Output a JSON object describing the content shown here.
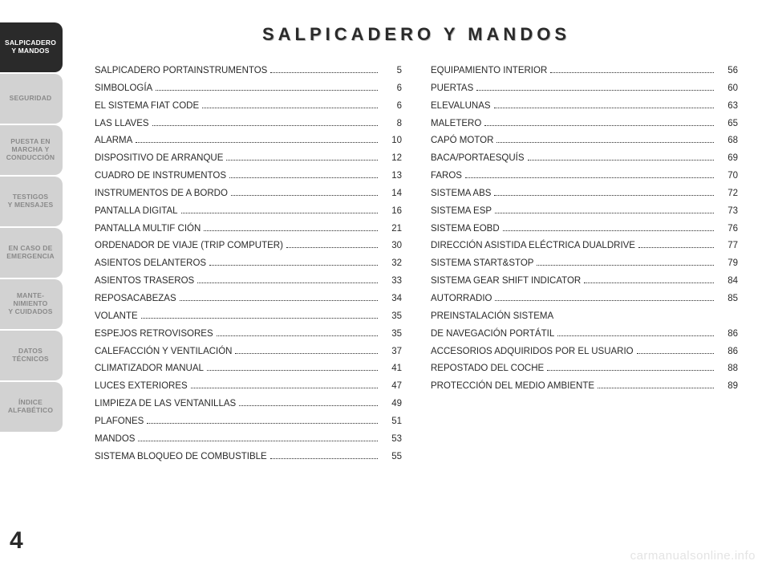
{
  "sidebar": {
    "active_bg": "#2a2a2a",
    "active_fg": "#ffffff",
    "inactive_bg": "#d2d2d2",
    "inactive_fg": "#8a8a8a",
    "tabs": [
      {
        "label": "SALPICADERO\nY MANDOS",
        "active": true
      },
      {
        "label": "SEGURIDAD",
        "active": false
      },
      {
        "label": "PUESTA EN\nMARCHA Y\nCONDUCCIÓN",
        "active": false
      },
      {
        "label": "TESTIGOS\nY MENSAJES",
        "active": false
      },
      {
        "label": "EN CASO DE\nEMERGENCIA",
        "active": false
      },
      {
        "label": "MANTE-\nNIMIENTO\nY CUIDADOS",
        "active": false
      },
      {
        "label": "DATOS\nTÉCNICOS",
        "active": false
      },
      {
        "label": "ÍNDICE\nALFABÉTICO",
        "active": false
      }
    ]
  },
  "page_number": "4",
  "title": "SALPICADERO Y MANDOS",
  "toc": {
    "left": [
      {
        "label": "SALPICADERO PORTAINSTRUMENTOS",
        "page": "5"
      },
      {
        "label": "SIMBOLOGÍA",
        "page": "6"
      },
      {
        "label": "EL SISTEMA FIAT CODE",
        "page": "6"
      },
      {
        "label": "LAS LLAVES",
        "page": "8"
      },
      {
        "label": "ALARMA",
        "page": "10"
      },
      {
        "label": "DISPOSITIVO DE ARRANQUE",
        "page": "12"
      },
      {
        "label": "CUADRO DE INSTRUMENTOS",
        "page": "13"
      },
      {
        "label": "INSTRUMENTOS DE A BORDO",
        "page": "14"
      },
      {
        "label": "PANTALLA DIGITAL",
        "page": "16"
      },
      {
        "label": "PANTALLA MULTIF CIÓN",
        "page": "21"
      },
      {
        "label": "ORDENADOR DE VIAJE (TRIP COMPUTER)",
        "page": "30"
      },
      {
        "label": "ASIENTOS DELANTEROS",
        "page": "32"
      },
      {
        "label": "ASIENTOS TRASEROS",
        "page": "33"
      },
      {
        "label": "REPOSACABEZAS",
        "page": "34"
      },
      {
        "label": "VOLANTE",
        "page": "35"
      },
      {
        "label": "ESPEJOS RETROVISORES",
        "page": "35"
      },
      {
        "label": "CALEFACCIÓN Y VENTILACIÓN",
        "page": "37"
      },
      {
        "label": "CLIMATIZADOR MANUAL",
        "page": "41"
      },
      {
        "label": "LUCES EXTERIORES",
        "page": "47"
      },
      {
        "label": "LIMPIEZA DE LAS VENTANILLAS",
        "page": "49"
      },
      {
        "label": "PLAFONES",
        "page": "51"
      },
      {
        "label": "MANDOS",
        "page": "53"
      },
      {
        "label": "SISTEMA BLOQUEO DE COMBUSTIBLE",
        "page": "55"
      }
    ],
    "right": [
      {
        "label": "EQUIPAMIENTO INTERIOR",
        "page": "56"
      },
      {
        "label": "PUERTAS",
        "page": "60"
      },
      {
        "label": "ELEVALUNAS",
        "page": "63"
      },
      {
        "label": "MALETERO",
        "page": "65"
      },
      {
        "label": "CAPÓ MOTOR",
        "page": "68"
      },
      {
        "label": "BACA/PORTAESQUÍS",
        "page": "69"
      },
      {
        "label": "FAROS",
        "page": "70"
      },
      {
        "label": "SISTEMA ABS",
        "page": "72"
      },
      {
        "label": "SISTEMA ESP",
        "page": "73"
      },
      {
        "label": "SISTEMA EOBD",
        "page": "76"
      },
      {
        "label": "DIRECCIÓN ASISTIDA ELÉCTRICA DUALDRIVE",
        "page": "77"
      },
      {
        "label": "SISTEMA START&STOP",
        "page": "79"
      },
      {
        "label": "SISTEMA GEAR SHIFT INDICATOR",
        "page": "84"
      },
      {
        "label": "AUTORRADIO",
        "page": "85"
      },
      {
        "label": "PREINSTALACIÓN SISTEMA\nDE NAVEGACIÓN PORTÁTIL",
        "page": "86"
      },
      {
        "label": "ACCESORIOS ADQUIRIDOS POR EL USUARIO",
        "page": "86"
      },
      {
        "label": "REPOSTADO DEL COCHE",
        "page": "88"
      },
      {
        "label": "PROTECCIÓN DEL MEDIO AMBIENTE",
        "page": "89"
      }
    ]
  },
  "watermark": "carmanualsonline.info",
  "style": {
    "page_bg": "#ffffff",
    "text_color": "#2a2a2a",
    "title_fontsize": 22,
    "toc_fontsize": 11.5,
    "tab_fontsize": 8.5,
    "watermark_color": "#e4e4e4"
  }
}
